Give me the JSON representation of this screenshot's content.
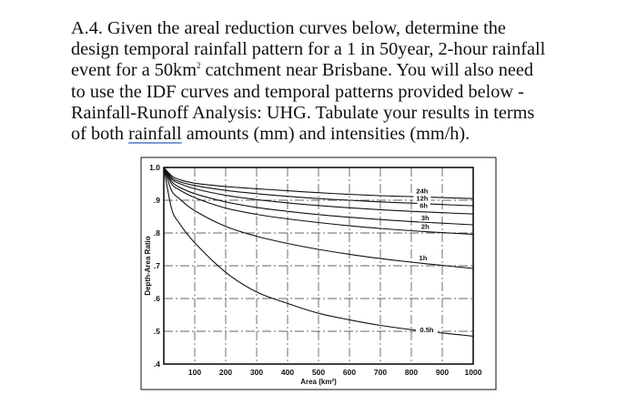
{
  "question": {
    "line1": "A.4. Given the areal reduction curves below, determine the",
    "line2": "design temporal rainfall pattern for a 1 in 50year, 2-hour rainfall",
    "line3_prefix": "event for a 50km",
    "line3_sup": "2",
    "line3_suffix": " catchment near Brisbane. You will also need",
    "line4": "to use the IDF curves and temporal patterns provided below -",
    "line5": "Rainfall-Runoff Analysis: UHG. Tabulate your results in terms",
    "line6_prefix": "of both ",
    "line6_underlined": "rainfall",
    "line6_suffix": " amounts (mm) and intensities (mm/h)."
  },
  "chart_data": {
    "type": "line",
    "xlabel": "Area (km²)",
    "ylabel": "Depth-Area Ratio",
    "xlim": [
      0,
      1000
    ],
    "ylim": [
      0.4,
      1.0
    ],
    "x_ticks": [
      100,
      200,
      300,
      400,
      500,
      600,
      700,
      800,
      900,
      1000
    ],
    "x_tick_labels": [
      "100",
      "200",
      "300",
      "400",
      "500",
      "600",
      "700",
      "800",
      "900",
      "1000"
    ],
    "y_ticks": [
      0.4,
      0.5,
      0.6,
      0.7,
      0.8,
      0.9,
      1.0
    ],
    "y_tick_labels": [
      ".4",
      ".5",
      ".6",
      ".7",
      ".8",
      ".9",
      "1.0"
    ],
    "grid": true,
    "series": [
      {
        "name": "24h",
        "x": [
          0,
          25,
          50,
          100,
          200,
          300,
          400,
          500,
          600,
          700,
          800,
          900,
          1000
        ],
        "y": [
          1.0,
          0.975,
          0.963,
          0.952,
          0.942,
          0.935,
          0.929,
          0.923,
          0.918,
          0.914,
          0.911,
          0.908,
          0.905
        ]
      },
      {
        "name": "12h",
        "x": [
          0,
          25,
          50,
          100,
          200,
          300,
          400,
          500,
          600,
          700,
          800,
          900,
          1000
        ],
        "y": [
          1.0,
          0.97,
          0.957,
          0.945,
          0.93,
          0.92,
          0.912,
          0.905,
          0.9,
          0.895,
          0.891,
          0.887,
          0.883
        ]
      },
      {
        "name": "6h",
        "x": [
          0,
          25,
          50,
          100,
          200,
          300,
          400,
          500,
          600,
          700,
          800,
          900,
          1000
        ],
        "y": [
          1.0,
          0.965,
          0.951,
          0.935,
          0.915,
          0.902,
          0.892,
          0.884,
          0.877,
          0.871,
          0.866,
          0.862,
          0.858
        ]
      },
      {
        "name": "3h",
        "x": [
          0,
          25,
          50,
          100,
          200,
          300,
          400,
          500,
          600,
          700,
          800,
          900,
          1000
        ],
        "y": [
          1.0,
          0.958,
          0.94,
          0.92,
          0.895,
          0.878,
          0.866,
          0.856,
          0.848,
          0.841,
          0.835,
          0.83,
          0.825
        ]
      },
      {
        "name": "2h",
        "x": [
          0,
          25,
          50,
          100,
          200,
          300,
          400,
          500,
          600,
          700,
          800,
          900,
          1000
        ],
        "y": [
          1.0,
          0.95,
          0.932,
          0.908,
          0.876,
          0.857,
          0.843,
          0.832,
          0.822,
          0.814,
          0.807,
          0.801,
          0.796
        ]
      },
      {
        "name": "1h",
        "x": [
          0,
          25,
          50,
          100,
          200,
          300,
          400,
          500,
          600,
          700,
          800,
          900,
          1000
        ],
        "y": [
          1.0,
          0.93,
          0.905,
          0.868,
          0.82,
          0.79,
          0.768,
          0.75,
          0.735,
          0.722,
          0.711,
          0.701,
          0.692
        ]
      },
      {
        "name": "0.5h",
        "x": [
          0,
          25,
          50,
          100,
          200,
          300,
          400,
          500,
          600,
          700,
          800,
          900,
          1000
        ],
        "y": [
          1.0,
          0.875,
          0.83,
          0.77,
          0.68,
          0.62,
          0.585,
          0.555,
          0.535,
          0.518,
          0.505,
          0.495,
          0.485
        ]
      }
    ],
    "curve_label_positions": [
      {
        "name": "24h",
        "x": 835,
        "y": 0.922
      },
      {
        "name": "12h",
        "x": 835,
        "y": 0.9
      },
      {
        "name": "6h",
        "x": 840,
        "y": 0.878
      },
      {
        "name": "3h",
        "x": 845,
        "y": 0.84
      },
      {
        "name": "2h",
        "x": 845,
        "y": 0.814
      },
      {
        "name": "1h",
        "x": 838,
        "y": 0.718
      },
      {
        "name": "0.5h",
        "x": 850,
        "y": 0.498
      }
    ]
  }
}
